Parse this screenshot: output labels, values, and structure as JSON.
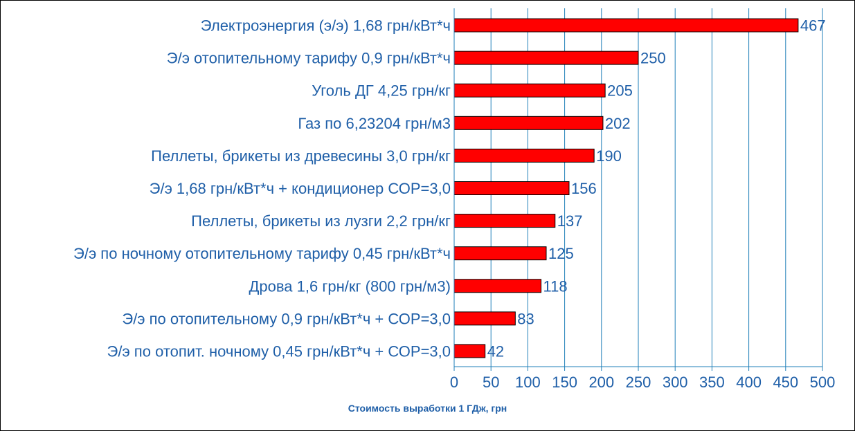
{
  "chart_data": {
    "type": "bar",
    "orientation": "horizontal",
    "categories": [
      "Электроэнергия (э/э) 1,68 грн/кВт*ч",
      "Э/э отопительному тарифу 0,9 грн/кВт*ч",
      "Уголь ДГ 4,25 грн/кг",
      "Газ по 6,23204 грн/м3",
      "Пеллеты, брикеты из древесины 3,0 грн/кг",
      "Э/э 1,68 грн/кВт*ч  + кондиционер СОР=3,0",
      "Пеллеты, брикеты из лузги 2,2 грн/кг",
      "Э/э по ночному отопительному тарифу 0,45 грн/кВт*ч",
      "Дрова 1,6 грн/кг (800 грн/м3)",
      "Э/э по отопительному 0,9 грн/кВт*ч + СОР=3,0",
      "Э/э по отопит. ночному 0,45 грн/кВт*ч + СОР=3,0"
    ],
    "values": [
      467,
      250,
      205,
      202,
      190,
      156,
      137,
      125,
      118,
      83,
      42
    ],
    "data_labels": [
      "467",
      "250",
      "205",
      "202",
      "190",
      "156",
      "137",
      "125",
      "118",
      "83",
      "42"
    ],
    "xlabel": "Стоимость выработки 1 ГДж, грн",
    "xlim": [
      0,
      500
    ],
    "xticks": [
      0,
      50,
      100,
      150,
      200,
      250,
      300,
      350,
      400,
      450,
      500
    ],
    "grid": "vertical",
    "legend": "none",
    "colors": {
      "bar_fill": "#ff0000",
      "bar_stroke": "#000000",
      "gridline": "#1f7fb8",
      "text": "#1f5fa8"
    }
  }
}
